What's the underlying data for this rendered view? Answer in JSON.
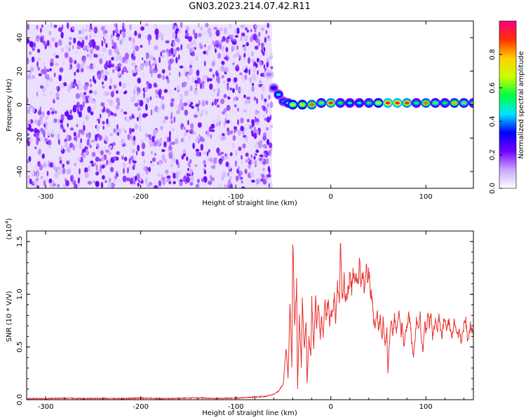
{
  "title": "GN03.2023.214.07.42.R11",
  "chart_data": [
    {
      "type": "heatmap",
      "xlabel": "Height of straight line (km)",
      "ylabel": "Frequency (Hz)",
      "xlim": [
        -320,
        150
      ],
      "ylim": [
        -50,
        50
      ],
      "x_ticks": [
        -300,
        -200,
        -100,
        0,
        100
      ],
      "y_ticks": [
        -40,
        -20,
        0,
        20,
        40
      ],
      "colorbar": {
        "label": "Normalized spectral amplitude",
        "range": [
          0,
          1
        ],
        "ticks": [
          "0.0",
          "0.2",
          "0.4",
          "0.6",
          "0.8"
        ],
        "tick_values": [
          0.0,
          0.2,
          0.4,
          0.6,
          0.8
        ],
        "colors": [
          "#ffffff",
          "#c9a6ff",
          "#7000ff",
          "#0000ff",
          "#00e5ff",
          "#00ff40",
          "#c8ff00",
          "#ffd000",
          "#ff3000",
          "#ff0080"
        ]
      },
      "noise_region": {
        "x": [
          -320,
          -62
        ],
        "y": [
          -50,
          48
        ]
      },
      "signal_trace": [
        {
          "x": -65,
          "y": 18,
          "amp": 0.15
        },
        {
          "x": -60,
          "y": 10,
          "amp": 0.3
        },
        {
          "x": -55,
          "y": 6,
          "amp": 0.45
        },
        {
          "x": -50,
          "y": 2,
          "amp": 0.4
        },
        {
          "x": -45,
          "y": 1,
          "amp": 0.45
        },
        {
          "x": -40,
          "y": 0,
          "amp": 0.7
        },
        {
          "x": -30,
          "y": 0,
          "amp": 0.75
        },
        {
          "x": -20,
          "y": 0,
          "amp": 0.85
        },
        {
          "x": -10,
          "y": 1,
          "amp": 0.6
        },
        {
          "x": 0,
          "y": 1,
          "amp": 0.9
        },
        {
          "x": 10,
          "y": 1,
          "amp": 0.55
        },
        {
          "x": 20,
          "y": 1,
          "amp": 0.5
        },
        {
          "x": 30,
          "y": 1,
          "amp": 0.5
        },
        {
          "x": 40,
          "y": 1,
          "amp": 0.55
        },
        {
          "x": 50,
          "y": 1,
          "amp": 0.7
        },
        {
          "x": 60,
          "y": 1,
          "amp": 0.95
        },
        {
          "x": 70,
          "y": 1,
          "amp": 0.95
        },
        {
          "x": 80,
          "y": 1,
          "amp": 0.9
        },
        {
          "x": 90,
          "y": 1,
          "amp": 0.55
        },
        {
          "x": 100,
          "y": 1,
          "amp": 0.85
        },
        {
          "x": 110,
          "y": 1,
          "amp": 0.6
        },
        {
          "x": 120,
          "y": 1,
          "amp": 0.55
        },
        {
          "x": 130,
          "y": 1,
          "amp": 0.8
        },
        {
          "x": 140,
          "y": 1,
          "amp": 0.6
        },
        {
          "x": 150,
          "y": 1,
          "amp": 0.55
        }
      ]
    },
    {
      "type": "line",
      "xlabel": "Height of straight line (km)",
      "ylabel": "SNR (10 * V/V)",
      "y_multiplier": "(x10",
      "y_multiplier_exp": "4",
      "y_multiplier_close": ")",
      "xlim": [
        -320,
        150
      ],
      "ylim": [
        0,
        1.6
      ],
      "x_ticks": [
        -300,
        -200,
        -100,
        0,
        100
      ],
      "y_ticks": [
        0,
        0.5,
        1.0,
        1.5
      ],
      "y_tick_labels": [
        "0.0",
        "0.5",
        "1.0",
        "1.5"
      ],
      "color": "#e8302c",
      "series": [
        {
          "x": [
            -320,
            -300,
            -280,
            -260,
            -240,
            -220,
            -200,
            -180,
            -160,
            -140,
            -120,
            -100,
            -90,
            -80,
            -70,
            -60,
            -55,
            -50,
            -47,
            -45,
            -43,
            -41,
            -40,
            -38,
            -36,
            -35,
            -33,
            -31,
            -30,
            -28,
            -26,
            -25,
            -23,
            -21,
            -20,
            -18,
            -16,
            -15,
            -13,
            -11,
            -10,
            -8,
            -6,
            -5,
            -3,
            -1,
            0,
            2,
            4,
            5,
            7,
            9,
            10,
            12,
            14,
            15,
            17,
            19,
            20,
            22,
            24,
            25,
            27,
            29,
            30,
            32,
            34,
            35,
            37,
            39,
            40,
            42,
            44,
            45,
            47,
            49,
            50,
            52,
            54,
            55,
            57,
            59,
            60,
            62,
            64,
            65,
            67,
            69,
            70,
            72,
            74,
            75,
            77,
            79,
            80,
            82,
            84,
            85,
            87,
            89,
            90,
            92,
            94,
            95,
            97,
            99,
            100,
            102,
            104,
            105,
            107,
            109,
            110,
            112,
            114,
            115,
            117,
            119,
            120,
            122,
            124,
            125,
            127,
            129,
            130,
            132,
            134,
            135,
            137,
            139,
            140,
            142,
            144,
            145,
            147,
            150
          ],
          "y": [
            0.01,
            0.01,
            0.015,
            0.01,
            0.012,
            0.01,
            0.015,
            0.01,
            0.012,
            0.018,
            0.012,
            0.015,
            0.02,
            0.025,
            0.03,
            0.05,
            0.08,
            0.15,
            0.5,
            0.2,
            0.9,
            0.3,
            1.55,
            0.7,
            1.1,
            0.1,
            0.8,
            0.3,
            0.95,
            0.5,
            0.75,
            0.15,
            0.6,
            0.4,
            0.95,
            0.5,
            1.0,
            0.7,
            0.9,
            0.55,
            0.8,
            0.6,
            1.0,
            0.75,
            0.95,
            0.7,
            0.85,
            0.8,
            1.0,
            0.7,
            1.1,
            0.9,
            1.52,
            0.95,
            1.15,
            0.95,
            1.0,
            1.05,
            1.2,
            1.05,
            1.25,
            1.1,
            1.15,
            1.1,
            1.3,
            1.1,
            1.2,
            1.05,
            1.25,
            1.15,
            1.2,
            1.0,
            0.95,
            0.75,
            0.7,
            0.85,
            0.65,
            0.8,
            0.55,
            0.75,
            0.5,
            0.65,
            0.25,
            0.6,
            0.75,
            0.6,
            0.8,
            0.65,
            0.7,
            0.85,
            0.6,
            0.75,
            0.5,
            0.7,
            0.65,
            0.8,
            0.7,
            0.55,
            0.4,
            0.6,
            0.75,
            0.65,
            0.8,
            0.6,
            0.45,
            0.75,
            0.6,
            0.8,
            0.7,
            0.85,
            0.6,
            0.7,
            0.75,
            0.65,
            0.8,
            0.7,
            0.6,
            0.75,
            0.8,
            0.65,
            0.75,
            0.7,
            0.6,
            0.7,
            0.75,
            0.65,
            0.6,
            0.7,
            0.55,
            0.65,
            0.7,
            0.75,
            0.55,
            0.6,
            0.7,
            0.6
          ]
        }
      ]
    }
  ]
}
